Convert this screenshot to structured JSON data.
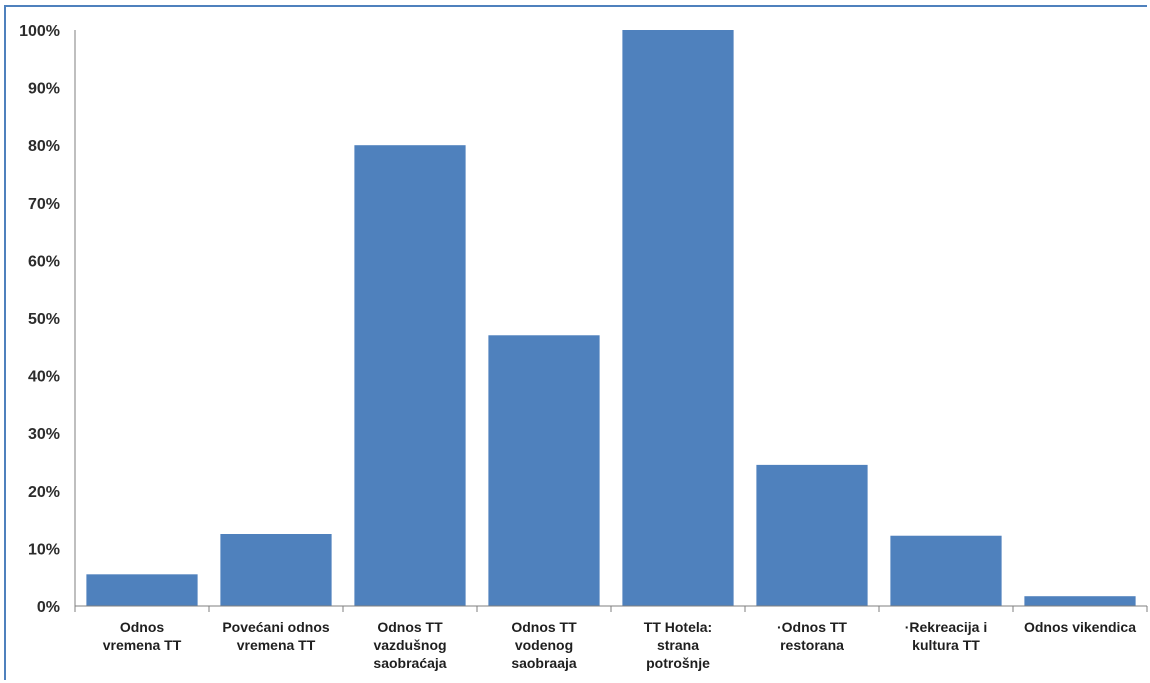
{
  "chart_data": {
    "type": "bar",
    "title": "",
    "xlabel": "",
    "ylabel": "",
    "ylim": [
      0,
      100
    ],
    "y_ticks": [
      "0%",
      "10%",
      "20%",
      "30%",
      "40%",
      "50%",
      "60%",
      "70%",
      "80%",
      "90%",
      "100%"
    ],
    "categories": [
      [
        "Odnos",
        "vremena TT"
      ],
      [
        "Povećani odnos",
        "vremena TT"
      ],
      [
        "Odnos TT",
        "vazdušnog",
        "saobraćaja"
      ],
      [
        "Odnos TT",
        "vodenog",
        "saobraaja"
      ],
      [
        "TT Hotela:",
        "strana",
        "potrošnje"
      ],
      [
        "·Odnos TT",
        "restorana"
      ],
      [
        "·Rekreacija i",
        "kultura TT"
      ],
      [
        "Odnos vikendica"
      ]
    ],
    "values": [
      5.5,
      12.5,
      80,
      47,
      100,
      24.5,
      12.2,
      1.7
    ],
    "bar_color": "#4f81bd",
    "axis_color": "#7f7f7f",
    "frame_color": "#4f81bd",
    "grid": false,
    "legend": "none"
  }
}
